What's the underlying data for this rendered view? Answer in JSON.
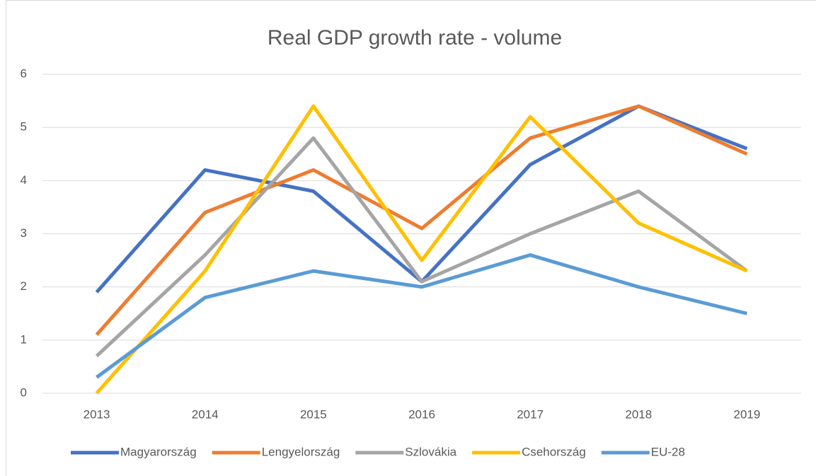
{
  "chart_data": {
    "type": "line",
    "title": "Real GDP growth rate - volume",
    "categories": [
      "2013",
      "2014",
      "2015",
      "2016",
      "2017",
      "2018",
      "2019"
    ],
    "series": [
      {
        "name": "Magyarország",
        "color": "#4472c4",
        "values": [
          1.9,
          4.2,
          3.8,
          2.1,
          4.3,
          5.4,
          4.6
        ]
      },
      {
        "name": "Lengyelország",
        "color": "#ed7d31",
        "values": [
          1.1,
          3.4,
          4.2,
          3.1,
          4.8,
          5.4,
          4.5
        ]
      },
      {
        "name": "Szlovákia",
        "color": "#a5a5a5",
        "values": [
          0.7,
          2.6,
          4.8,
          2.1,
          3.0,
          3.8,
          2.3
        ]
      },
      {
        "name": "Csehország",
        "color": "#ffc000",
        "values": [
          0.0,
          2.3,
          5.4,
          2.5,
          5.2,
          3.2,
          2.3
        ]
      },
      {
        "name": "EU-28",
        "color": "#5b9bd5",
        "values": [
          0.3,
          1.8,
          2.3,
          2.0,
          2.6,
          2.0,
          1.5
        ]
      }
    ],
    "ylim": [
      0,
      6
    ],
    "yticks": [
      0,
      1,
      2,
      3,
      4,
      5,
      6
    ],
    "grid": true,
    "legend": "bottom"
  }
}
